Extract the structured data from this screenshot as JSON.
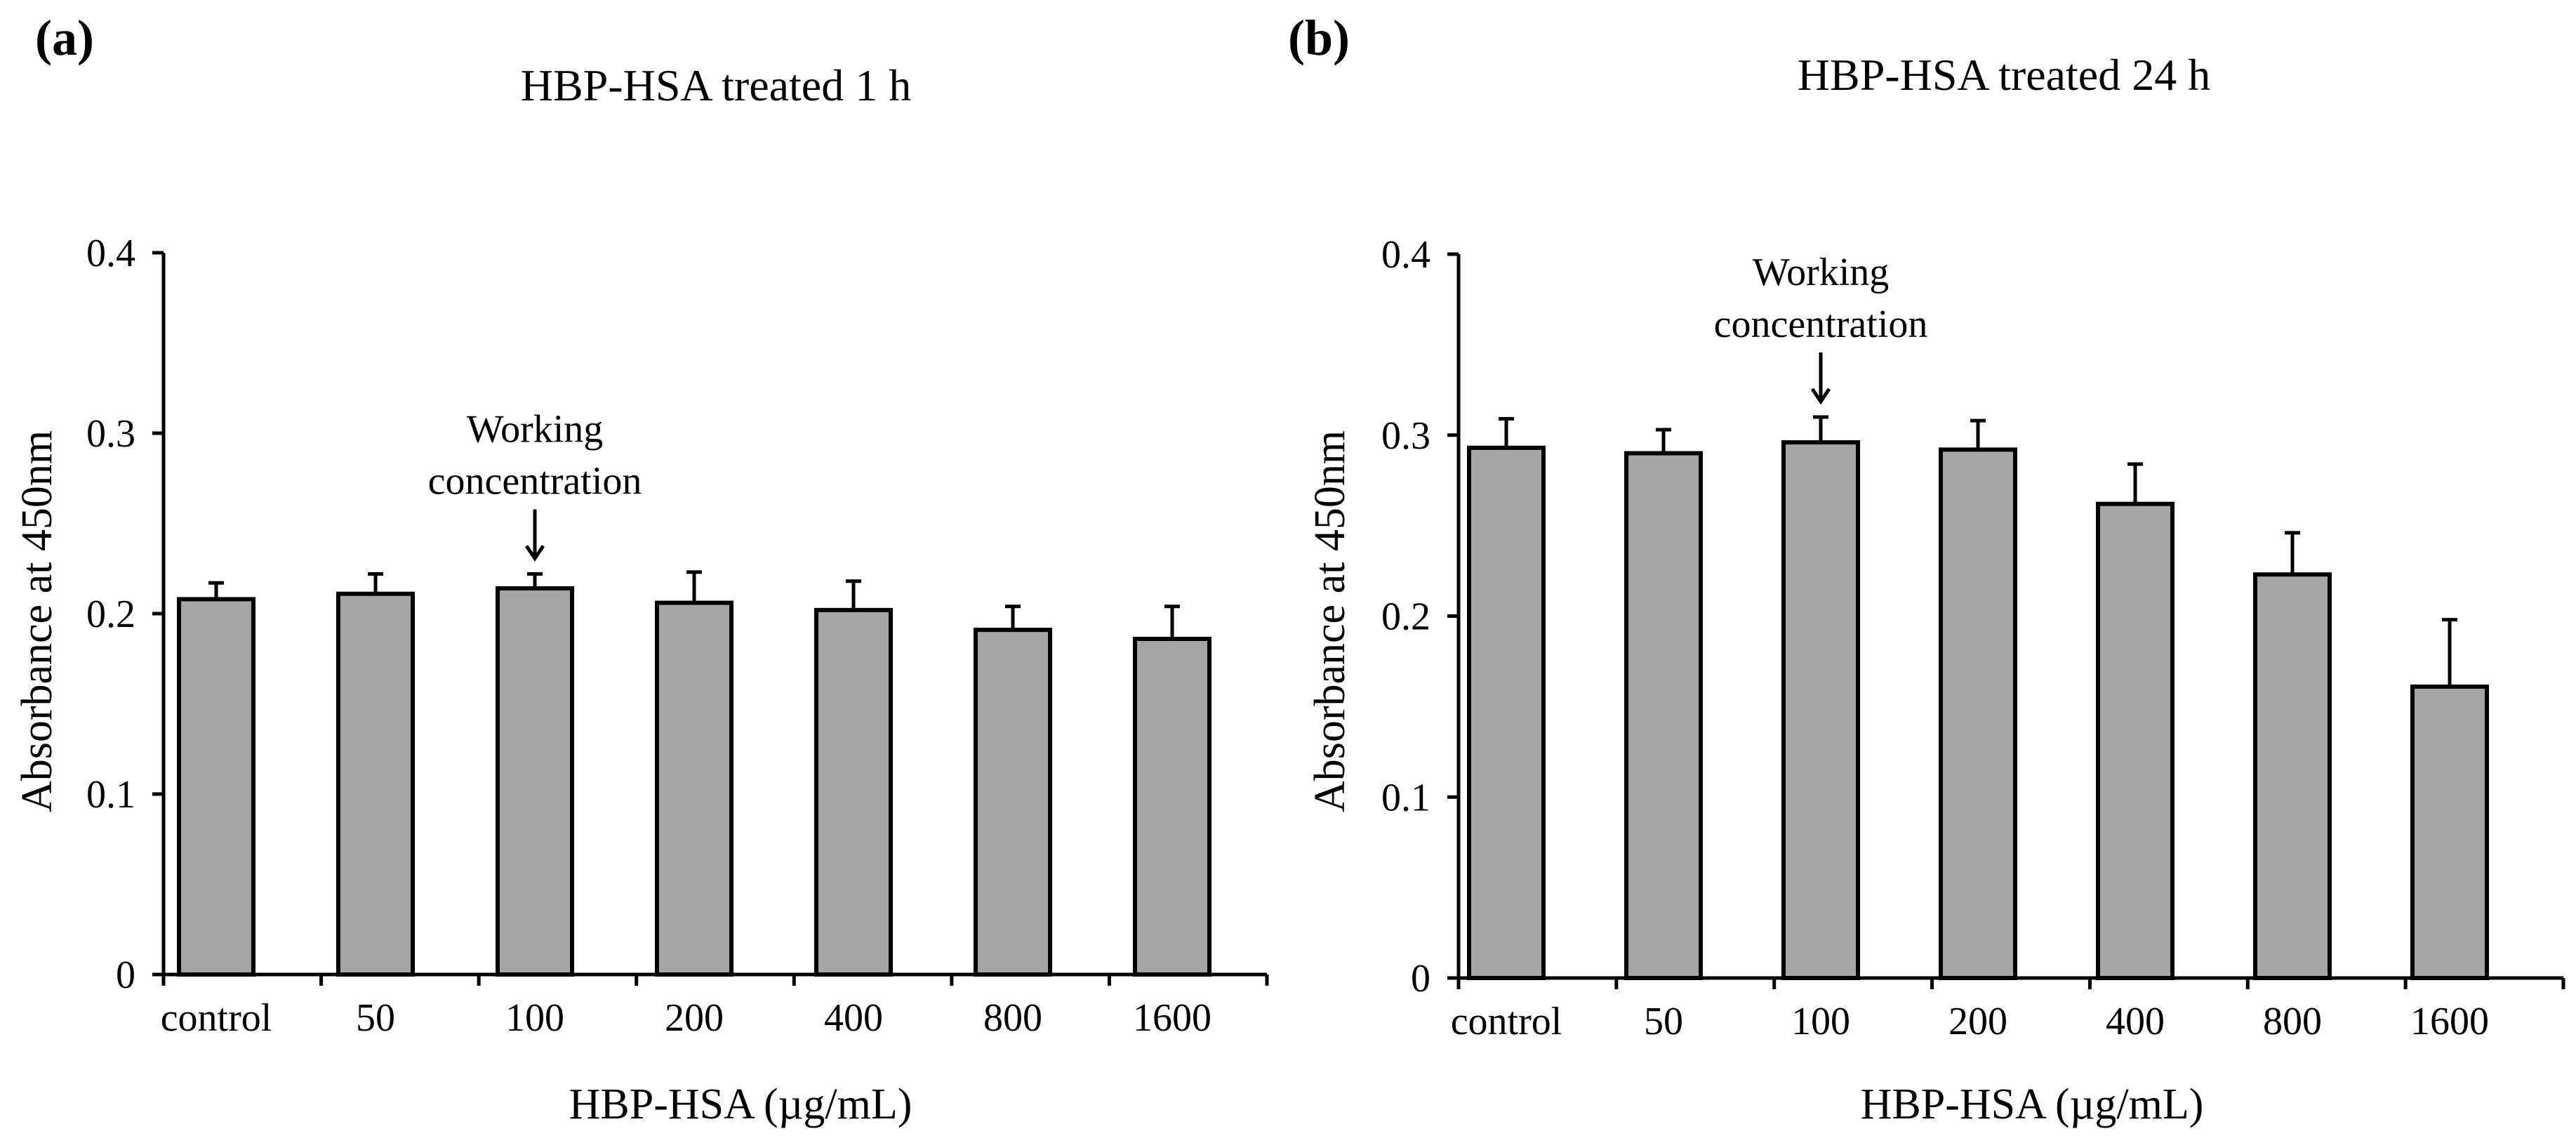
{
  "chart_data": [
    {
      "panel": "(a)",
      "type": "bar",
      "title": "HBP-HSA treated 1 h",
      "xlabel": "HBP-HSA (µg/mL)",
      "ylabel": "Absorbance at 450nm",
      "categories": [
        "control",
        "50",
        "100",
        "200",
        "400",
        "800",
        "1600"
      ],
      "values": [
        0.208,
        0.211,
        0.214,
        0.206,
        0.202,
        0.191,
        0.186
      ],
      "errors": [
        0.009,
        0.011,
        0.008,
        0.017,
        0.016,
        0.013,
        0.018
      ],
      "ylim": [
        0,
        0.4
      ],
      "yticks": [
        "0",
        "0.1",
        "0.2",
        "0.3",
        "0.4"
      ],
      "annotation": {
        "lines": [
          "Working",
          "concentration"
        ],
        "category": "100"
      }
    },
    {
      "panel": "(b)",
      "type": "bar",
      "title": "HBP-HSA treated 24 h",
      "xlabel": "HBP-HSA (µg/mL)",
      "ylabel": "Absorbance at 450nm",
      "categories": [
        "control",
        "50",
        "100",
        "200",
        "400",
        "800",
        "1600"
      ],
      "values": [
        0.293,
        0.29,
        0.296,
        0.292,
        0.262,
        0.223,
        0.161
      ],
      "errors": [
        0.016,
        0.013,
        0.014,
        0.016,
        0.022,
        0.023,
        0.037
      ],
      "ylim": [
        0,
        0.4
      ],
      "yticks": [
        "0",
        "0.1",
        "0.2",
        "0.3",
        "0.4"
      ],
      "annotation": {
        "lines": [
          "Working",
          "concentration"
        ],
        "category": "100"
      }
    }
  ]
}
